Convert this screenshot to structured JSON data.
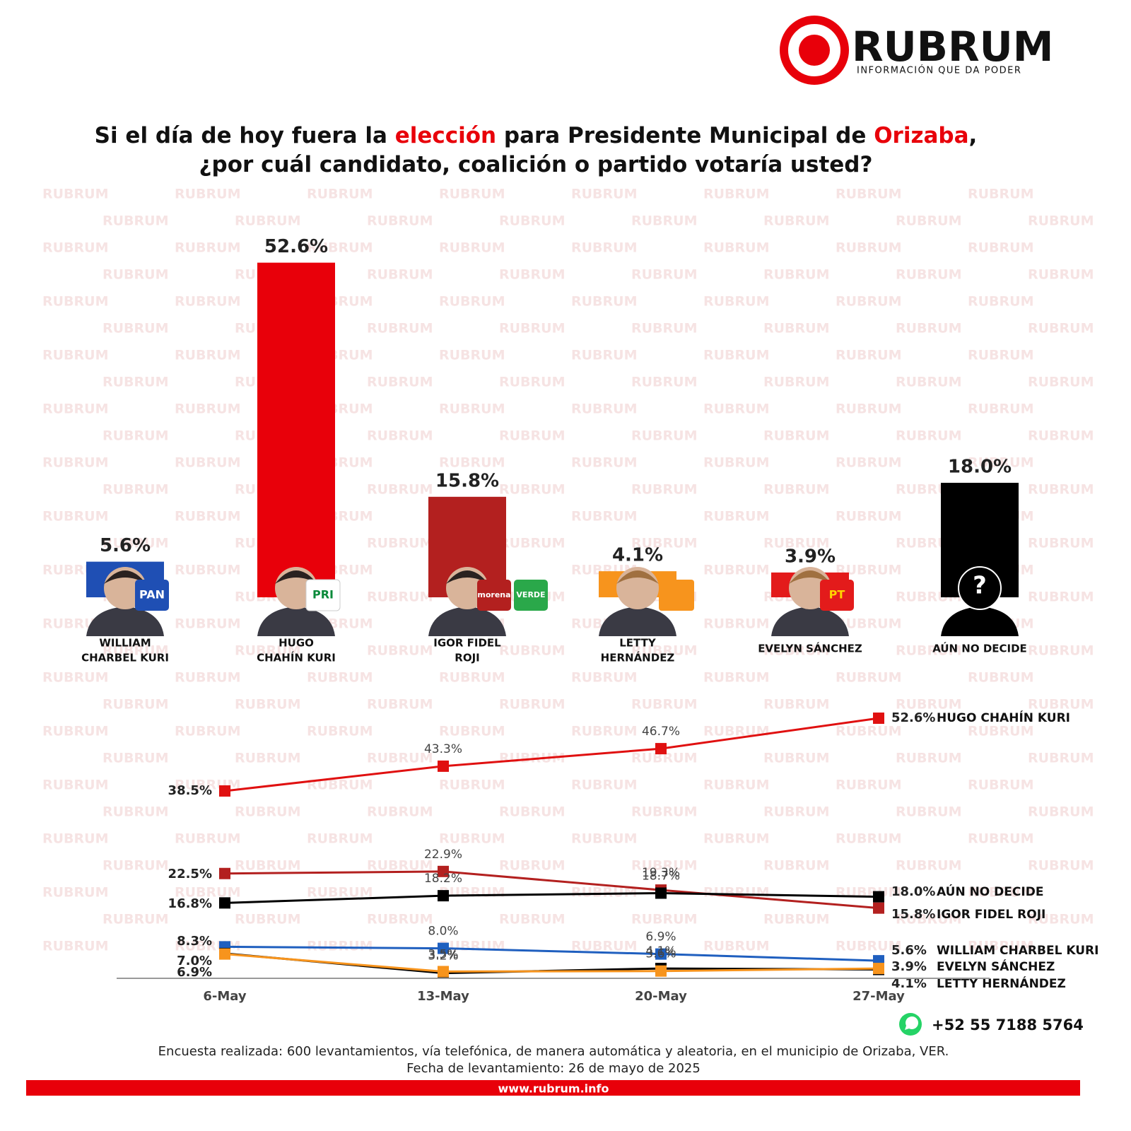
{
  "header": {
    "logo_name": "RUBRUM",
    "tagline": "INFORMACIÓN QUE DA PODER"
  },
  "title_lines": [
    [
      {
        "text": "Si el día de hoy fuera la ",
        "color": "#111111"
      },
      {
        "text": "elección",
        "color": "#e8000a"
      },
      {
        "text": " para Presidente Municipal de ",
        "color": "#111111"
      },
      {
        "text": "Orizaba",
        "color": "#e8000a"
      },
      {
        "text": ",",
        "color": "#111111"
      }
    ],
    [
      {
        "text": "¿por cuál candidato, coalición o partido votaría usted?",
        "color": "#111111"
      }
    ]
  ],
  "chart_data": [
    {
      "type": "bar",
      "categories": [
        [
          "WILLIAM",
          "CHARBEL KURI"
        ],
        [
          "HUGO",
          "CHAHÍN KURI"
        ],
        [
          "IGOR FIDEL",
          "ROJI"
        ],
        [
          "LETTY",
          "HERNÁNDEZ"
        ],
        [
          "EVELYN SÁNCHEZ"
        ],
        [
          "AÚN NO DECIDE"
        ]
      ],
      "values": [
        5.6,
        52.6,
        15.8,
        4.1,
        3.9,
        18.0
      ],
      "value_labels": [
        "5.6%",
        "52.6%",
        "15.8%",
        "4.1%",
        "3.9%",
        "18.0%"
      ],
      "colors": [
        "#1f4fb4",
        "#e8000a",
        "#b3201f",
        "#f7941d",
        "#e31b1b",
        "#000000"
      ],
      "logos": [
        [
          "PAN"
        ],
        [
          "PRI"
        ],
        [
          "morena",
          "VERDE"
        ],
        [],
        [
          "PT"
        ],
        [
          "?"
        ]
      ]
    },
    {
      "type": "line",
      "categories": [
        "6-May",
        "13-May",
        "20-May",
        "27-May"
      ],
      "series": [
        {
          "name": "HUGO CHAHÍN KURI",
          "color": "#e01010",
          "values": [
            38.5,
            43.3,
            46.7,
            52.6
          ],
          "value_labels": [
            "38.5%",
            "43.3%",
            "46.7%",
            "52.6%"
          ]
        },
        {
          "name": "IGOR FIDEL ROJI",
          "color": "#b3201f",
          "values": [
            22.5,
            22.9,
            19.3,
            15.8
          ],
          "value_labels": [
            "22.5%",
            "22.9%",
            "19.3%",
            "15.8%"
          ]
        },
        {
          "name": "AÚN NO DECIDE",
          "color": "#000000",
          "values": [
            16.8,
            18.2,
            18.7,
            18.0
          ],
          "value_labels": [
            "16.8%",
            "18.2%",
            "18.7%",
            "18.0%"
          ]
        },
        {
          "name": "WILLIAM CHARBEL KURI",
          "color": "#1f5fbf",
          "values": [
            8.3,
            8.0,
            6.9,
            5.6
          ],
          "value_labels": [
            "8.3%",
            "8.0%",
            "6.9%",
            "5.6%"
          ]
        },
        {
          "name": "EVELYN SÁNCHEZ",
          "color": "#000000",
          "values": [
            7.0,
            3.2,
            4.1,
            3.9
          ],
          "value_labels": [
            "7.0%",
            "3.2%",
            "4.1%",
            "3.9%"
          ]
        },
        {
          "name": "LETTY HERNÁNDEZ",
          "color": "#f7941d",
          "values": [
            6.9,
            3.5,
            3.6,
            4.1
          ],
          "value_labels": [
            "6.9%",
            "3.5%",
            "3.6%",
            "4.1%"
          ]
        }
      ]
    }
  ],
  "footer": {
    "phone": "+52 55 7188 5764",
    "note": "Encuesta realizada: 600 levantamientos, vía telefónica, de manera automática y aleatoria, en el municipio de Orizaba, VER.",
    "date": "Fecha de levantamiento: 26 de mayo de 2025",
    "website": "www.rubrum.info"
  }
}
